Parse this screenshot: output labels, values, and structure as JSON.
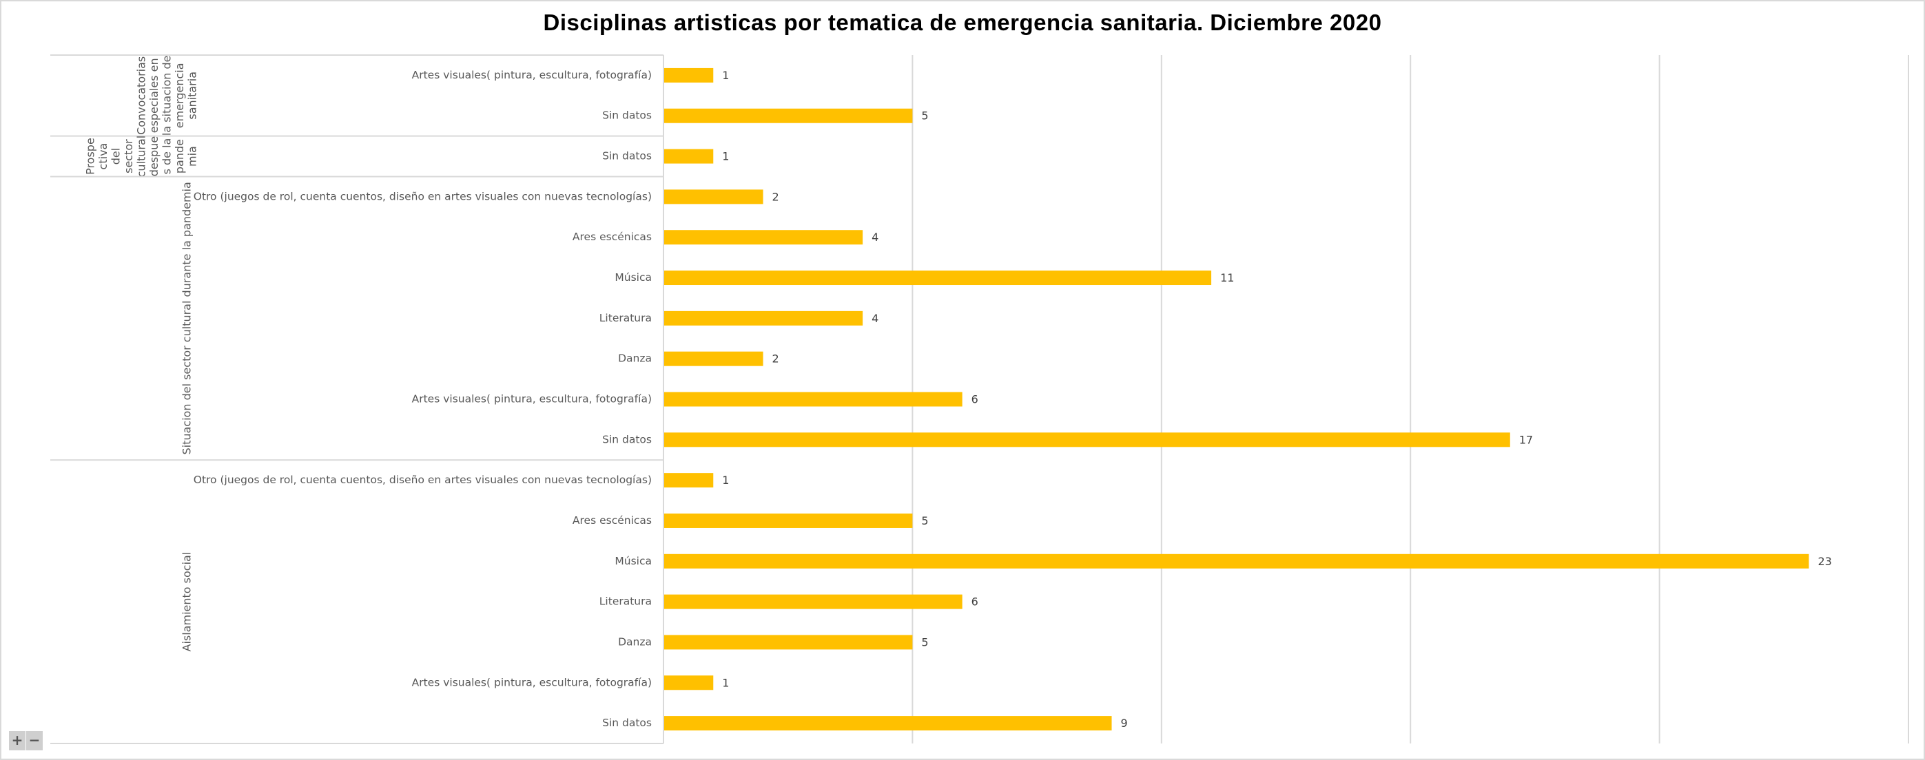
{
  "chart_data": {
    "type": "bar",
    "orientation": "horizontal",
    "title": "Disciplinas artisticas por tematica de emergencia sanitaria. Diciembre 2020",
    "xlabel": "",
    "ylabel": "",
    "xlim": [
      0,
      25
    ],
    "grid_step": 5,
    "grid": true,
    "bar_color": "#FFC000",
    "groups": [
      {
        "name": "Convocatorias especiales en la situacion de emergencia sanitaria",
        "name_lines": [
          "Convocatorias",
          "especiales en",
          "la situacion de",
          "emergencia",
          "sanitaria"
        ],
        "categories": [
          "Artes visuales( pintura, escultura, fotografía)",
          "Sin datos"
        ],
        "values": [
          1,
          5
        ]
      },
      {
        "name": "Prospectiva del sector cultural despues de la pandemia",
        "name_lines": [
          "Prospe",
          "ctiva",
          "del",
          "sector",
          "cultural",
          "despue",
          "s de la",
          "pande",
          "mia"
        ],
        "categories": [
          "Sin datos"
        ],
        "values": [
          1
        ]
      },
      {
        "name": "Situacion del sector cultural durante la pandemia",
        "name_lines": [
          "Situacion del sector cultural durante la pandemia"
        ],
        "categories": [
          "Otro (juegos de rol, cuenta cuentos, diseño en artes visuales con nuevas tecnologías)",
          "Ares escénicas",
          "Música",
          "Literatura",
          "Danza",
          "Artes visuales( pintura, escultura, fotografía)",
          "Sin datos"
        ],
        "values": [
          2,
          4,
          11,
          4,
          2,
          6,
          17
        ]
      },
      {
        "name": "Aislamiento social",
        "name_lines": [
          "Aislamiento social"
        ],
        "categories": [
          "Otro (juegos de rol, cuenta cuentos, diseño en artes visuales con nuevas tecnologías)",
          "Ares escénicas",
          "Música",
          "Literatura",
          "Danza",
          "Artes visuales( pintura, escultura, fotografía)",
          "Sin datos"
        ],
        "values": [
          1,
          5,
          23,
          6,
          5,
          1,
          9
        ]
      }
    ]
  },
  "controls": {
    "zoom_in": "+",
    "zoom_out": "−"
  }
}
